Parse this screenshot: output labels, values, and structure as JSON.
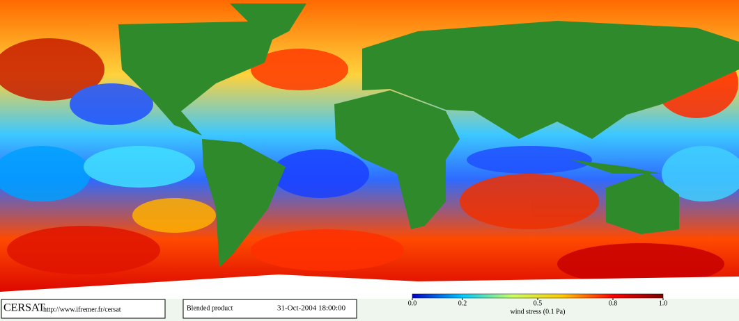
{
  "footer": {
    "logo": "CERSAT",
    "url": "http://www.ifremer.fr/cersat",
    "product": "Blended product",
    "date": "31-Oct-2004 18:00:00"
  },
  "colorbar": {
    "label": "wind stress (0.1 Pa)",
    "lim": [
      0,
      1
    ],
    "ticks": [
      {
        "value": 0,
        "label": "0.0"
      },
      0.2,
      0.5,
      0.8,
      {
        "value": 1,
        "label": "1.0"
      }
    ],
    "colors": [
      "#0000c8",
      "#00c8ff",
      "#c8ff64",
      "#ffc800",
      "#ff0000",
      "#780000"
    ]
  }
}
